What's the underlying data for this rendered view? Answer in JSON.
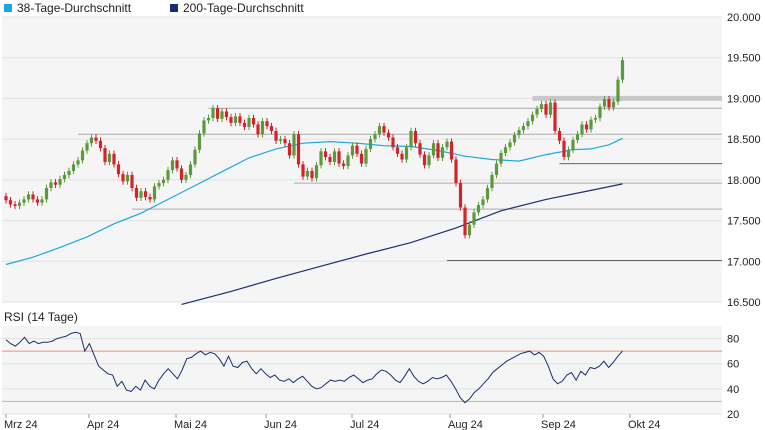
{
  "legend": {
    "items": [
      {
        "label": "38-Tage-Durchschnitt",
        "color": "#1ea7e1"
      },
      {
        "label": "200-Tage-Durchschnitt",
        "color": "#1a2f6e"
      }
    ]
  },
  "rsi_title": "RSI (14 Tage)",
  "colors": {
    "up": "#5a9a3c",
    "down": "#d2232a",
    "ma38": "#1ea7e1",
    "ma200": "#1a2f6e",
    "rsi": "#1a2f6e",
    "rsi_upper": "#f08a8a",
    "rsi_lower": "#8fd08f",
    "plot_bg": "#f5f5f5"
  },
  "chart_data": [
    {
      "type": "candlestick",
      "ylim": [
        16500,
        20000
      ],
      "y_ticks": [
        "20.000",
        "19.500",
        "19.000",
        "18.500",
        "18.000",
        "17.500",
        "17.000",
        "16.500"
      ],
      "x_ticks": [
        "Mrz 24",
        "Apr 24",
        "Mai 24",
        "Jun 24",
        "Jul 24",
        "Aug 24",
        "Sep 24",
        "Okt 24"
      ],
      "grid": true,
      "legend_position": "top-left",
      "candles": [
        {
          "o": 17800,
          "c": 17750
        },
        {
          "o": 17750,
          "c": 17700
        },
        {
          "o": 17700,
          "c": 17680
        },
        {
          "o": 17680,
          "c": 17720
        },
        {
          "o": 17720,
          "c": 17760
        },
        {
          "o": 17760,
          "c": 17820
        },
        {
          "o": 17820,
          "c": 17760
        },
        {
          "o": 17760,
          "c": 17720
        },
        {
          "o": 17720,
          "c": 17760
        },
        {
          "o": 17760,
          "c": 17900
        },
        {
          "o": 17900,
          "c": 17970
        },
        {
          "o": 17970,
          "c": 17940
        },
        {
          "o": 17940,
          "c": 18010
        },
        {
          "o": 18010,
          "c": 18060
        },
        {
          "o": 18060,
          "c": 18110
        },
        {
          "o": 18110,
          "c": 18190
        },
        {
          "o": 18190,
          "c": 18240
        },
        {
          "o": 18240,
          "c": 18360
        },
        {
          "o": 18360,
          "c": 18450
        },
        {
          "o": 18450,
          "c": 18520
        },
        {
          "o": 18520,
          "c": 18480
        },
        {
          "o": 18480,
          "c": 18390
        },
        {
          "o": 18390,
          "c": 18220
        },
        {
          "o": 18220,
          "c": 18320
        },
        {
          "o": 18320,
          "c": 18190
        },
        {
          "o": 18190,
          "c": 18070
        },
        {
          "o": 18070,
          "c": 17980
        },
        {
          "o": 17980,
          "c": 18060
        },
        {
          "o": 18060,
          "c": 17900
        },
        {
          "o": 17900,
          "c": 17780
        },
        {
          "o": 17780,
          "c": 17860
        },
        {
          "o": 17860,
          "c": 17790
        },
        {
          "o": 17790,
          "c": 17760
        },
        {
          "o": 17760,
          "c": 17920
        },
        {
          "o": 17920,
          "c": 17960
        },
        {
          "o": 17960,
          "c": 18000
        },
        {
          "o": 18000,
          "c": 18120
        },
        {
          "o": 18120,
          "c": 18240
        },
        {
          "o": 18240,
          "c": 18140
        },
        {
          "o": 18140,
          "c": 18000
        },
        {
          "o": 18000,
          "c": 18060
        },
        {
          "o": 18060,
          "c": 18190
        },
        {
          "o": 18190,
          "c": 18370
        },
        {
          "o": 18370,
          "c": 18570
        },
        {
          "o": 18570,
          "c": 18730
        },
        {
          "o": 18730,
          "c": 18760
        },
        {
          "o": 18760,
          "c": 18880
        },
        {
          "o": 18880,
          "c": 18750
        },
        {
          "o": 18750,
          "c": 18840
        },
        {
          "o": 18840,
          "c": 18770
        },
        {
          "o": 18770,
          "c": 18700
        },
        {
          "o": 18700,
          "c": 18780
        },
        {
          "o": 18780,
          "c": 18700
        },
        {
          "o": 18700,
          "c": 18650
        },
        {
          "o": 18650,
          "c": 18760
        },
        {
          "o": 18760,
          "c": 18680
        },
        {
          "o": 18680,
          "c": 18560
        },
        {
          "o": 18560,
          "c": 18720
        },
        {
          "o": 18720,
          "c": 18660
        },
        {
          "o": 18660,
          "c": 18600
        },
        {
          "o": 18600,
          "c": 18480
        },
        {
          "o": 18480,
          "c": 18500
        },
        {
          "o": 18500,
          "c": 18450
        },
        {
          "o": 18450,
          "c": 18300
        },
        {
          "o": 18300,
          "c": 18560
        },
        {
          "o": 18560,
          "c": 18190
        },
        {
          "o": 18190,
          "c": 18040
        },
        {
          "o": 18040,
          "c": 18110
        },
        {
          "o": 18110,
          "c": 18020
        },
        {
          "o": 18020,
          "c": 18180
        },
        {
          "o": 18180,
          "c": 18350
        },
        {
          "o": 18350,
          "c": 18280
        },
        {
          "o": 18280,
          "c": 18220
        },
        {
          "o": 18220,
          "c": 18350
        },
        {
          "o": 18350,
          "c": 18200
        },
        {
          "o": 18200,
          "c": 18170
        },
        {
          "o": 18170,
          "c": 18300
        },
        {
          "o": 18300,
          "c": 18420
        },
        {
          "o": 18420,
          "c": 18320
        },
        {
          "o": 18320,
          "c": 18200
        },
        {
          "o": 18200,
          "c": 18380
        },
        {
          "o": 18380,
          "c": 18500
        },
        {
          "o": 18500,
          "c": 18560
        },
        {
          "o": 18560,
          "c": 18660
        },
        {
          "o": 18660,
          "c": 18580
        },
        {
          "o": 18580,
          "c": 18520
        },
        {
          "o": 18520,
          "c": 18400
        },
        {
          "o": 18400,
          "c": 18320
        },
        {
          "o": 18320,
          "c": 18250
        },
        {
          "o": 18250,
          "c": 18400
        },
        {
          "o": 18400,
          "c": 18600
        },
        {
          "o": 18600,
          "c": 18450
        },
        {
          "o": 18450,
          "c": 18310
        },
        {
          "o": 18310,
          "c": 18180
        },
        {
          "o": 18180,
          "c": 18300
        },
        {
          "o": 18300,
          "c": 18450
        },
        {
          "o": 18450,
          "c": 18270
        },
        {
          "o": 18270,
          "c": 18400
        },
        {
          "o": 18400,
          "c": 18470
        },
        {
          "o": 18470,
          "c": 18250
        },
        {
          "o": 18250,
          "c": 17960
        },
        {
          "o": 17960,
          "c": 17660
        },
        {
          "o": 17660,
          "c": 17320
        },
        {
          "o": 17320,
          "c": 17450
        },
        {
          "o": 17450,
          "c": 17600
        },
        {
          "o": 17600,
          "c": 17690
        },
        {
          "o": 17690,
          "c": 17760
        },
        {
          "o": 17760,
          "c": 17900
        },
        {
          "o": 17900,
          "c": 18060
        },
        {
          "o": 18060,
          "c": 18200
        },
        {
          "o": 18200,
          "c": 18330
        },
        {
          "o": 18330,
          "c": 18400
        },
        {
          "o": 18400,
          "c": 18460
        },
        {
          "o": 18460,
          "c": 18550
        },
        {
          "o": 18550,
          "c": 18610
        },
        {
          "o": 18610,
          "c": 18660
        },
        {
          "o": 18660,
          "c": 18720
        },
        {
          "o": 18720,
          "c": 18800
        },
        {
          "o": 18800,
          "c": 18870
        },
        {
          "o": 18870,
          "c": 18930
        },
        {
          "o": 18930,
          "c": 18800
        },
        {
          "o": 18800,
          "c": 18950
        },
        {
          "o": 18950,
          "c": 18600
        },
        {
          "o": 18600,
          "c": 18480
        },
        {
          "o": 18480,
          "c": 18280
        },
        {
          "o": 18280,
          "c": 18370
        },
        {
          "o": 18370,
          "c": 18490
        },
        {
          "o": 18490,
          "c": 18560
        },
        {
          "o": 18560,
          "c": 18680
        },
        {
          "o": 18680,
          "c": 18620
        },
        {
          "o": 18620,
          "c": 18740
        },
        {
          "o": 18740,
          "c": 18760
        },
        {
          "o": 18760,
          "c": 18900
        },
        {
          "o": 18900,
          "c": 18990
        },
        {
          "o": 18990,
          "c": 18890
        },
        {
          "o": 18890,
          "c": 18960
        },
        {
          "o": 18960,
          "c": 19230
        },
        {
          "o": 19230,
          "c": 19470
        }
      ],
      "ma38": [
        [
          0,
          16960
        ],
        [
          6,
          17050
        ],
        [
          12,
          17170
        ],
        [
          18,
          17300
        ],
        [
          24,
          17460
        ],
        [
          30,
          17590
        ],
        [
          36,
          17760
        ],
        [
          42,
          17930
        ],
        [
          48,
          18100
        ],
        [
          54,
          18270
        ],
        [
          60,
          18380
        ],
        [
          66,
          18450
        ],
        [
          72,
          18470
        ],
        [
          78,
          18450
        ],
        [
          84,
          18420
        ],
        [
          90,
          18410
        ],
        [
          96,
          18360
        ],
        [
          102,
          18290
        ],
        [
          108,
          18250
        ],
        [
          114,
          18230
        ],
        [
          120,
          18310
        ],
        [
          126,
          18370
        ],
        [
          130,
          18380
        ],
        [
          134,
          18430
        ],
        [
          137,
          18510
        ]
      ],
      "ma200": [
        [
          39,
          16470
        ],
        [
          50,
          16630
        ],
        [
          60,
          16790
        ],
        [
          70,
          16940
        ],
        [
          80,
          17090
        ],
        [
          90,
          17230
        ],
        [
          100,
          17410
        ],
        [
          110,
          17620
        ],
        [
          120,
          17760
        ],
        [
          130,
          17870
        ],
        [
          137,
          17950
        ]
      ],
      "ref_lines": [
        {
          "y": 18880,
          "from": 45,
          "to": 137
        },
        {
          "y": 18560,
          "from": 16,
          "to": 137
        },
        {
          "y": 17960,
          "from": 64,
          "to": 137
        },
        {
          "y": 17640,
          "from": 28,
          "to": 137
        },
        {
          "y": 17010,
          "from": 98,
          "to": 137
        },
        {
          "y": 18200,
          "from": 123,
          "to": 137
        },
        {
          "y": 19000,
          "from": 117,
          "to": 137
        }
      ]
    },
    {
      "type": "line",
      "title": "RSI (14 Tage)",
      "ylim": [
        20,
        90
      ],
      "y_ticks": [
        "80",
        "60",
        "40",
        "20"
      ],
      "bands": [
        70,
        30
      ],
      "values": [
        79,
        76,
        74,
        77,
        81,
        76,
        78,
        76,
        77,
        77,
        78,
        80,
        81,
        82,
        84,
        85,
        84,
        70,
        76,
        67,
        58,
        55,
        52,
        51,
        42,
        46,
        39,
        38,
        42,
        39,
        47,
        42,
        40,
        47,
        52,
        56,
        52,
        48,
        55,
        64,
        65,
        68,
        70,
        67,
        69,
        68,
        64,
        58,
        66,
        58,
        57,
        61,
        62,
        56,
        52,
        56,
        52,
        49,
        51,
        47,
        46,
        48,
        45,
        48,
        50,
        46,
        42,
        40,
        41,
        44,
        47,
        46,
        47,
        46,
        49,
        51,
        48,
        45,
        47,
        48,
        52,
        55,
        54,
        51,
        47,
        45,
        50,
        56,
        50,
        46,
        44,
        46,
        49,
        48,
        49,
        51,
        46,
        40,
        33,
        29,
        32,
        37,
        40,
        44,
        48,
        53,
        56,
        59,
        62,
        64,
        66,
        68,
        69,
        70,
        67,
        69,
        66,
        58,
        48,
        44,
        46,
        51,
        53,
        47,
        54,
        51,
        57,
        56,
        58,
        62,
        57,
        61,
        66,
        70
      ]
    }
  ]
}
